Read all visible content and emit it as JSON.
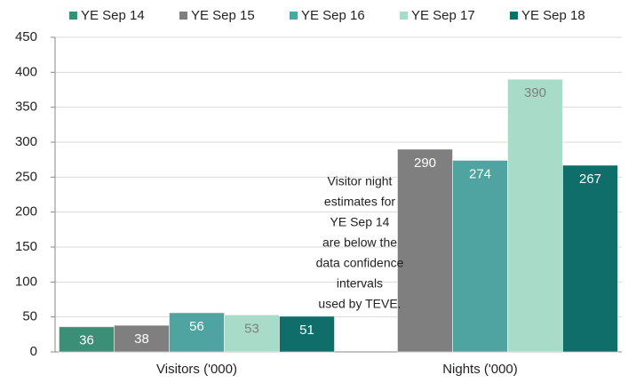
{
  "chart_data": {
    "type": "bar",
    "categories": [
      "Visitors ('000)",
      "Nights ('000)"
    ],
    "series": [
      {
        "name": "YE Sep 14",
        "color": "#3a8f76",
        "label_color": "#ffffff",
        "values": [
          36,
          null
        ]
      },
      {
        "name": "YE Sep 15",
        "color": "#7f7f7f",
        "label_color": "#ffffff",
        "values": [
          38,
          290
        ]
      },
      {
        "name": "YE Sep 16",
        "color": "#4fa3a0",
        "label_color": "#ffffff",
        "values": [
          56,
          274
        ]
      },
      {
        "name": "YE Sep 17",
        "color": "#a8dcc8",
        "label_color": "#7f7f7f",
        "values": [
          53,
          390
        ]
      },
      {
        "name": "YE Sep 18",
        "color": "#0f6e6a",
        "label_color": "#ffffff",
        "values": [
          51,
          267
        ]
      }
    ],
    "ylim": [
      0,
      450
    ],
    "yticks": [
      0,
      50,
      100,
      150,
      200,
      250,
      300,
      350,
      400,
      450
    ],
    "grid": true,
    "legend": "top",
    "annotation": [
      "Visitor night",
      "estimates for",
      "YE Sep 14",
      "are below the",
      "data confidence",
      "intervals",
      "used by TEVE."
    ]
  }
}
